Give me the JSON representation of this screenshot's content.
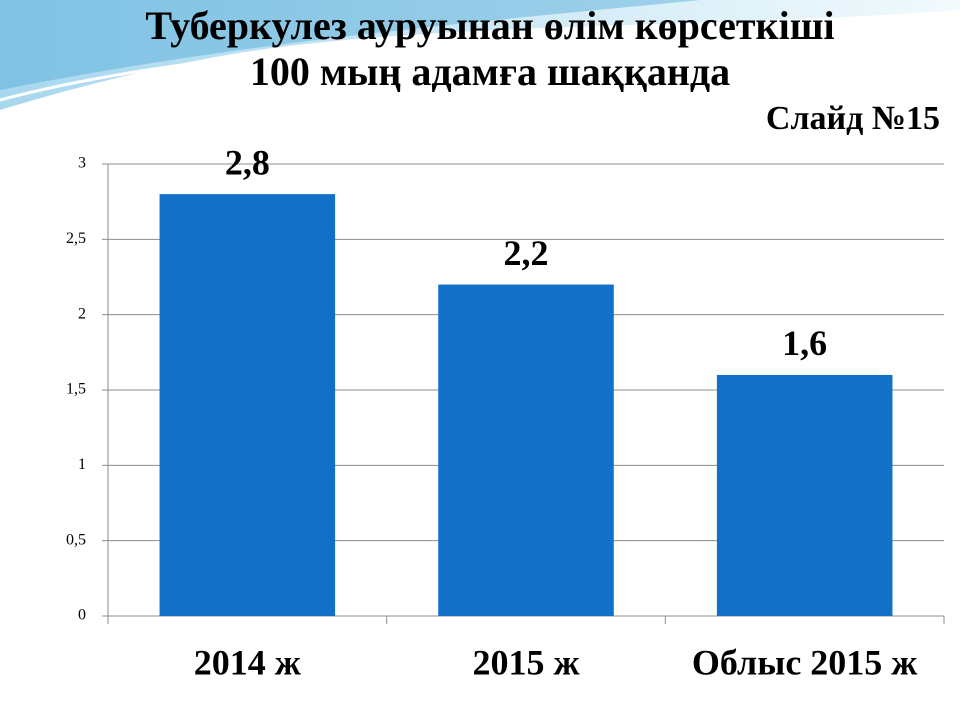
{
  "chart_data": {
    "type": "bar",
    "title": "Туберкулез ауруынан өлім көрсеткіші",
    "subtitle": "100 мың адамға шаққанда",
    "annotation": "Слайд №15",
    "categories": [
      "2014 ж",
      "2015 ж",
      "Облыс 2015 ж"
    ],
    "values": [
      2.8,
      2.2,
      1.6
    ],
    "value_labels": [
      "2,8",
      "2,2",
      "1,6"
    ],
    "color": "#1270c8",
    "ylim": [
      0,
      3
    ],
    "yticks": [
      0,
      {
        "value": 0.5,
        "label": "0,5"
      },
      1,
      {
        "value": 1.5,
        "label": "1,5"
      },
      2,
      {
        "value": 2.5,
        "label": "2,5"
      },
      3
    ],
    "grid": true
  }
}
